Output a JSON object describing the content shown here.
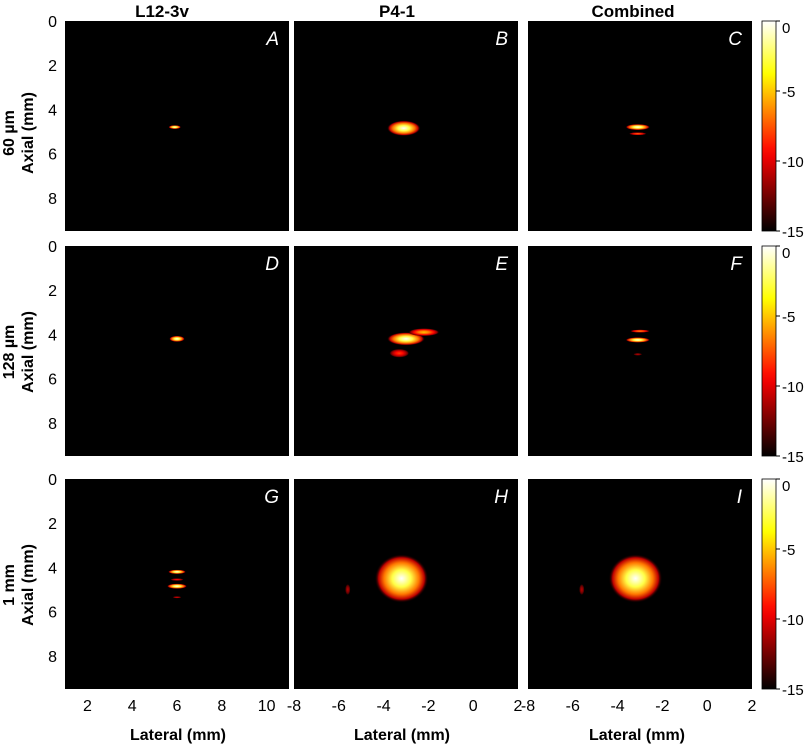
{
  "figure": {
    "column_titles": [
      "L12-3v",
      "P4-1",
      "Combined"
    ],
    "row_labels": [
      "60 µm",
      "128 µm",
      "1 mm"
    ],
    "ylabel": "Axial (mm)",
    "xlabel": "Lateral (mm)",
    "panel_letters": [
      "A",
      "B",
      "C",
      "D",
      "E",
      "F",
      "G",
      "H",
      "I"
    ]
  },
  "chart_data": {
    "type": "heatmap",
    "colormap": "hot",
    "background_color": "#000000",
    "colorbar": {
      "ticks": [
        "0",
        "-5",
        "-10",
        "-15"
      ],
      "range": [
        -15,
        0
      ],
      "colors": [
        "#000000",
        "#ff0000",
        "#ffff00",
        "#ffffff"
      ]
    },
    "y_axis": {
      "range": [
        0,
        9.5
      ],
      "ticks": [
        "0",
        "2",
        "4",
        "6",
        "8"
      ],
      "tick_values": [
        0,
        2,
        4,
        6,
        8
      ]
    },
    "x_axes": [
      {
        "range": [
          1,
          11
        ],
        "ticks": [
          "2",
          "4",
          "6",
          "8",
          "10"
        ],
        "tick_values": [
          2,
          4,
          6,
          8,
          10
        ]
      },
      {
        "range": [
          -8,
          2
        ],
        "ticks": [
          "-8",
          "-6",
          "-4",
          "-2",
          "0",
          "2"
        ],
        "tick_values": [
          -8,
          -6,
          -4,
          -2,
          0,
          2
        ]
      },
      {
        "range": [
          -8,
          2
        ],
        "ticks": [
          "-8",
          "-6",
          "-4",
          "-2",
          "0",
          "2"
        ],
        "tick_values": [
          -8,
          -6,
          -4,
          -2,
          0,
          2
        ]
      }
    ],
    "panels": [
      {
        "letter": "A",
        "row": 0,
        "col": 0,
        "blobs": [
          {
            "x": 5.9,
            "y": 4.8,
            "rx": 0.28,
            "ry": 0.09,
            "peak": 0
          }
        ]
      },
      {
        "letter": "B",
        "row": 0,
        "col": 1,
        "blobs": [
          {
            "x": -3.1,
            "y": 4.85,
            "rx": 0.75,
            "ry": 0.35,
            "peak": 0
          }
        ]
      },
      {
        "letter": "C",
        "row": 0,
        "col": 2,
        "blobs": [
          {
            "x": -3.1,
            "y": 4.8,
            "rx": 0.55,
            "ry": 0.14,
            "peak": 0
          },
          {
            "x": -3.1,
            "y": 5.1,
            "rx": 0.4,
            "ry": 0.07,
            "peak": -7
          }
        ]
      },
      {
        "letter": "D",
        "row": 1,
        "col": 0,
        "blobs": [
          {
            "x": 6.0,
            "y": 4.2,
            "rx": 0.35,
            "ry": 0.14,
            "peak": 0
          }
        ]
      },
      {
        "letter": "E",
        "row": 1,
        "col": 1,
        "blobs": [
          {
            "x": -3.0,
            "y": 4.2,
            "rx": 0.85,
            "ry": 0.3,
            "peak": 0
          },
          {
            "x": -2.2,
            "y": 3.9,
            "rx": 0.7,
            "ry": 0.18,
            "peak": -5
          },
          {
            "x": -3.3,
            "y": 4.85,
            "rx": 0.45,
            "ry": 0.2,
            "peak": -8
          }
        ]
      },
      {
        "letter": "F",
        "row": 1,
        "col": 2,
        "blobs": [
          {
            "x": -3.1,
            "y": 4.25,
            "rx": 0.55,
            "ry": 0.12,
            "peak": 0
          },
          {
            "x": -3.0,
            "y": 3.85,
            "rx": 0.45,
            "ry": 0.07,
            "peak": -6
          },
          {
            "x": -3.1,
            "y": 4.9,
            "rx": 0.2,
            "ry": 0.06,
            "peak": -11
          }
        ]
      },
      {
        "letter": "G",
        "row": 2,
        "col": 0,
        "blobs": [
          {
            "x": 6.0,
            "y": 4.2,
            "rx": 0.4,
            "ry": 0.1,
            "peak": 0
          },
          {
            "x": 6.0,
            "y": 4.85,
            "rx": 0.45,
            "ry": 0.12,
            "peak": 0
          },
          {
            "x": 6.0,
            "y": 4.55,
            "rx": 0.3,
            "ry": 0.06,
            "peak": -9
          },
          {
            "x": 6.0,
            "y": 5.35,
            "rx": 0.2,
            "ry": 0.05,
            "peak": -10
          }
        ]
      },
      {
        "letter": "H",
        "row": 2,
        "col": 1,
        "blobs": [
          {
            "x": -3.2,
            "y": 4.5,
            "rx": 1.2,
            "ry": 1.1,
            "peak": 0
          },
          {
            "x": -5.6,
            "y": 5.0,
            "rx": 0.12,
            "ry": 0.25,
            "peak": -11
          }
        ]
      },
      {
        "letter": "I",
        "row": 2,
        "col": 2,
        "blobs": [
          {
            "x": -3.2,
            "y": 4.5,
            "rx": 1.2,
            "ry": 1.1,
            "peak": 0
          },
          {
            "x": -5.6,
            "y": 5.0,
            "rx": 0.12,
            "ry": 0.25,
            "peak": -11
          }
        ]
      }
    ]
  }
}
